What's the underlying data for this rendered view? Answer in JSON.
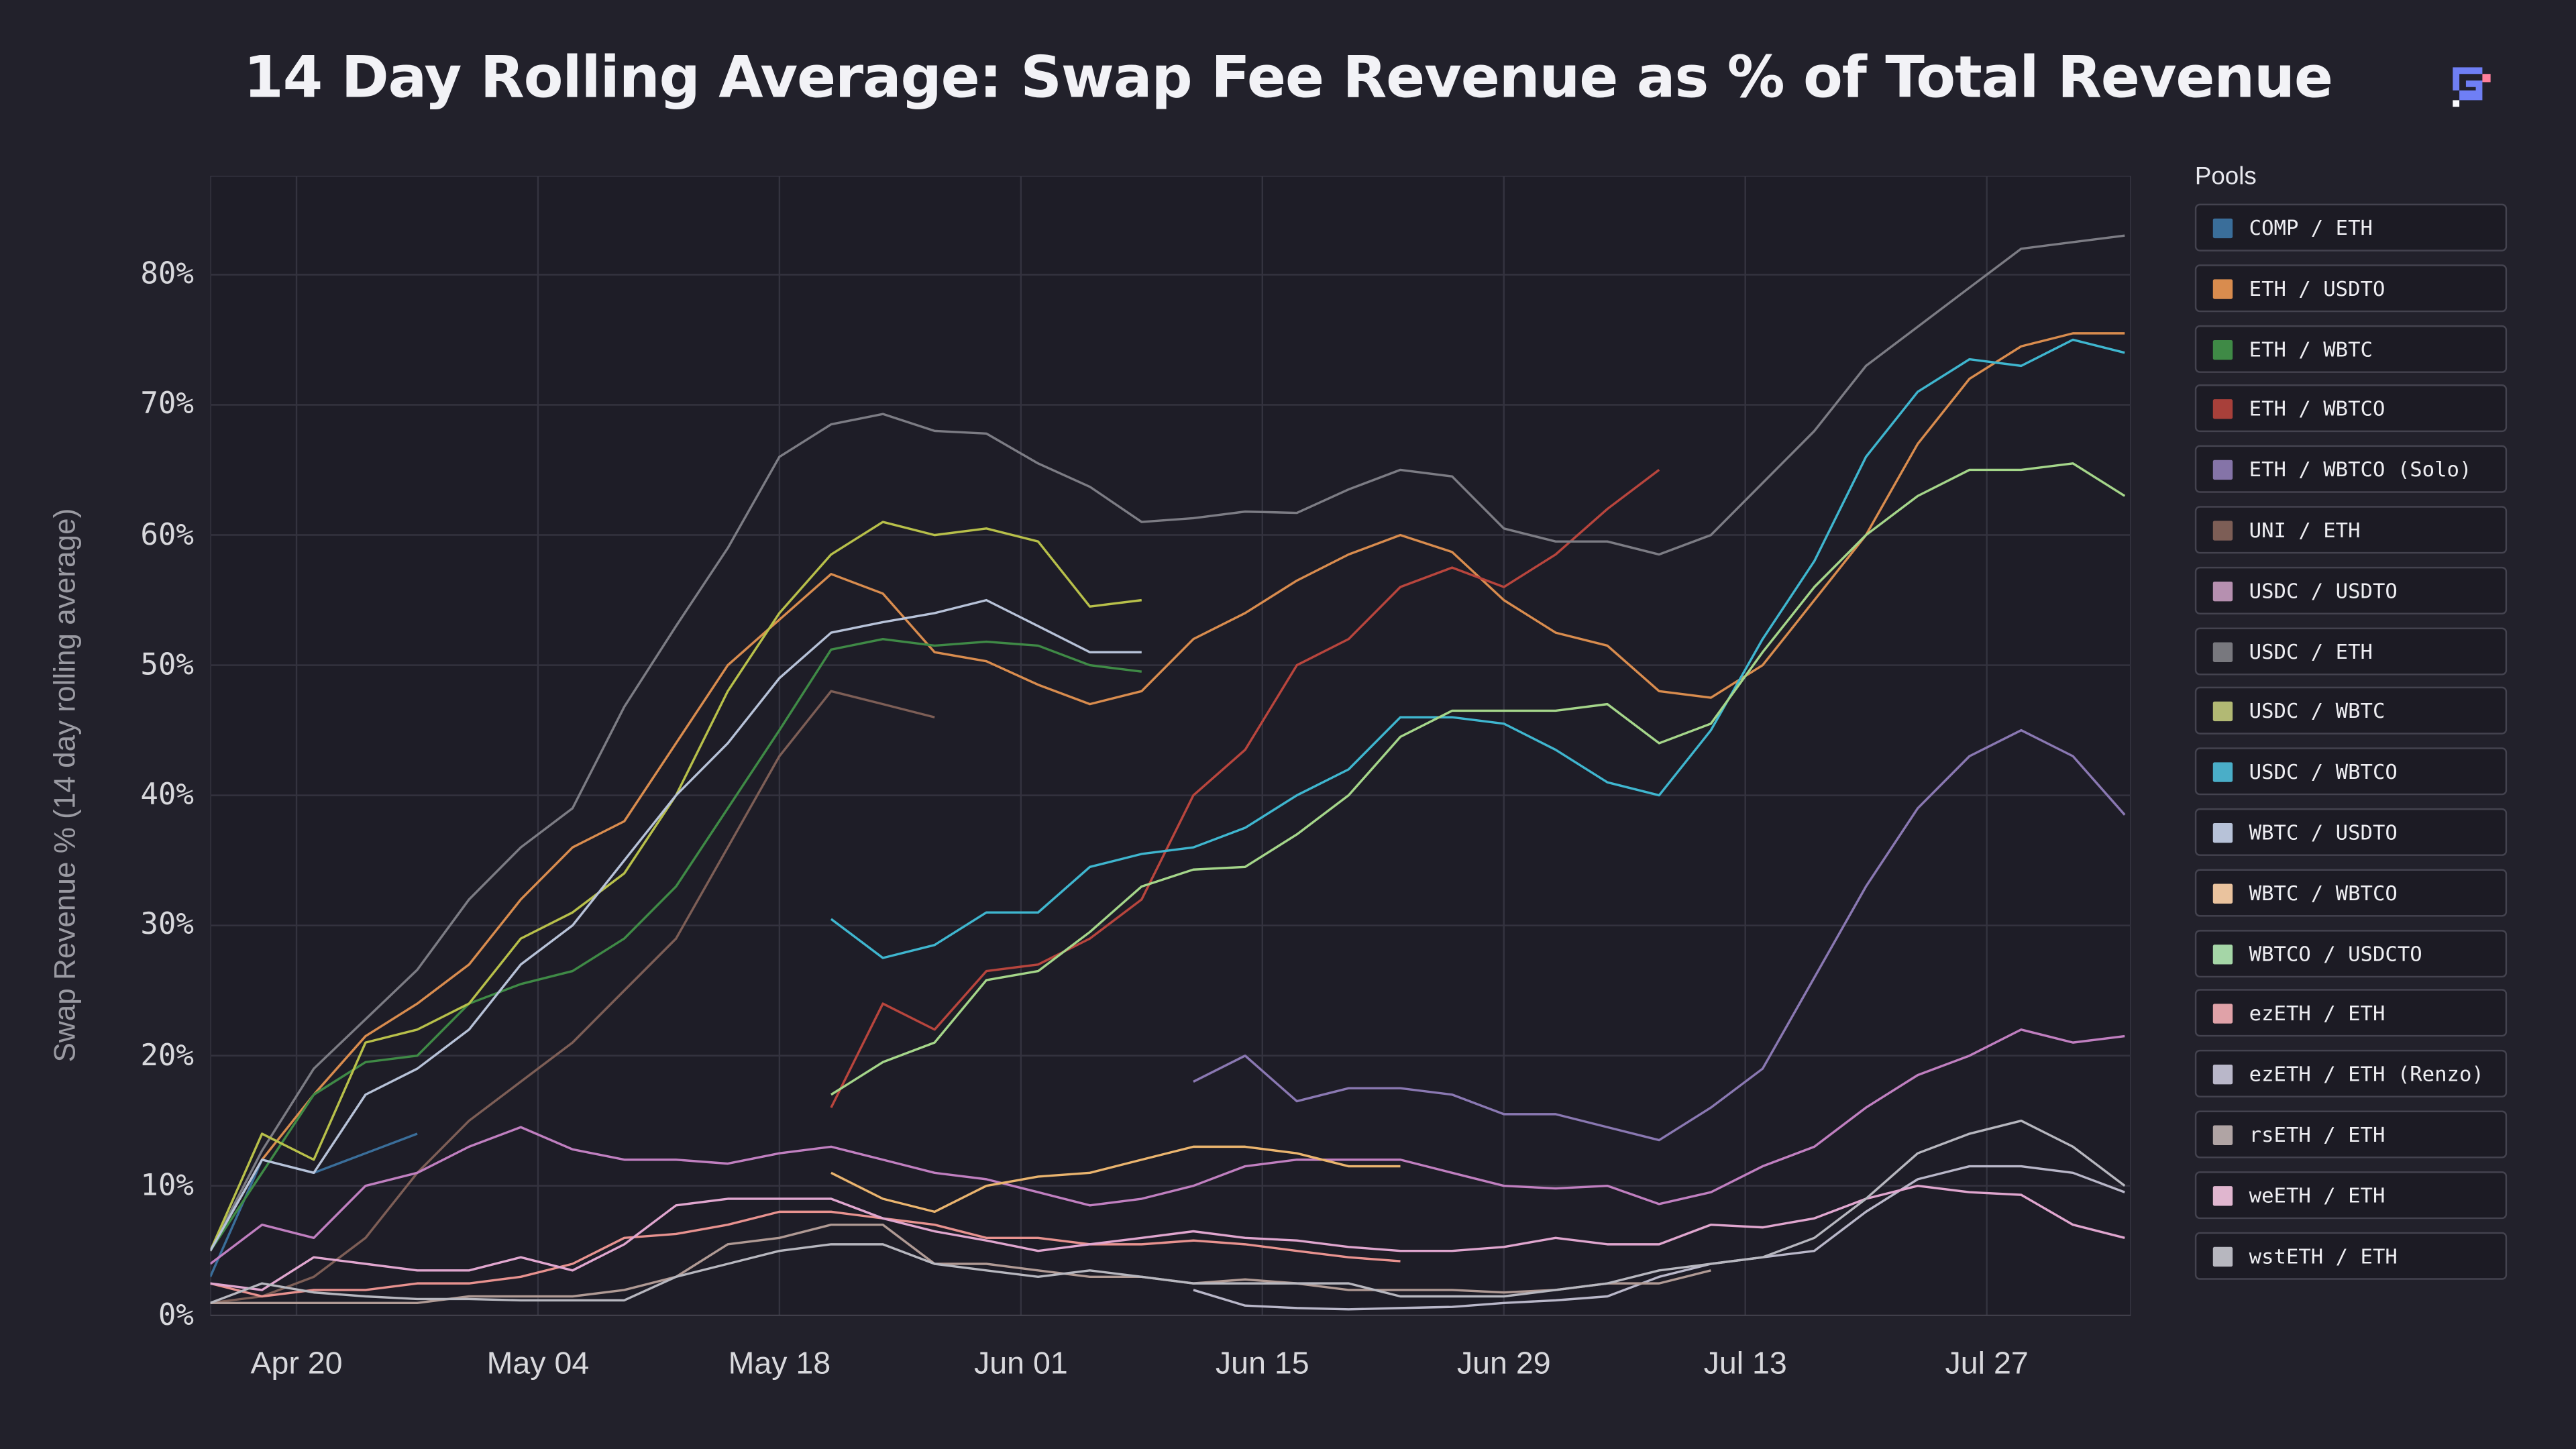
{
  "chart_data": {
    "type": "line",
    "title": "14 Day Rolling Average: Swap Fee Revenue as % of Total Revenue",
    "xlabel": "",
    "ylabel": "Swap Revenue % (14 day rolling average)",
    "ylim": [
      0,
      87.6
    ],
    "xlim": [
      "Apr 15",
      "Aug 04"
    ],
    "grid": true,
    "legend_title": "Pools",
    "legend_position": "right",
    "x_ticks": [
      "Apr 20",
      "May 04",
      "May 18",
      "Jun 01",
      "Jun 15",
      "Jun 29",
      "Jul 13",
      "Jul 27"
    ],
    "y_ticks": [
      "0%",
      "10%",
      "20%",
      "30%",
      "40%",
      "50%",
      "60%",
      "70%",
      "80%"
    ],
    "x": [
      "Apr 15",
      "Apr 18",
      "Apr 21",
      "Apr 24",
      "Apr 27",
      "Apr 30",
      "May 03",
      "May 06",
      "May 09",
      "May 12",
      "May 15",
      "May 18",
      "May 21",
      "May 24",
      "May 27",
      "May 30",
      "Jun 02",
      "Jun 05",
      "Jun 08",
      "Jun 11",
      "Jun 14",
      "Jun 17",
      "Jun 20",
      "Jun 23",
      "Jun 26",
      "Jun 29",
      "Jul 02",
      "Jul 05",
      "Jul 08",
      "Jul 11",
      "Jul 14",
      "Jul 17",
      "Jul 20",
      "Jul 23",
      "Jul 26",
      "Jul 29",
      "Aug 01",
      "Aug 04"
    ],
    "series": [
      {
        "name": "COMP / ETH",
        "color": "#3a6e9a",
        "values": [
          3,
          12,
          11,
          12.5,
          14,
          null,
          null,
          null,
          null,
          null,
          null,
          null,
          null,
          null,
          null,
          null,
          null,
          null,
          null,
          null,
          null,
          null,
          null,
          null,
          null,
          null,
          null,
          null,
          null,
          null,
          null,
          null,
          null,
          null,
          null,
          null,
          null,
          null
        ]
      },
      {
        "name": "ETH / USDTO",
        "color": "#d98c4e",
        "values": [
          5,
          12,
          17,
          21.5,
          24,
          27,
          32,
          36,
          38,
          44,
          50,
          53.5,
          57,
          55.5,
          51,
          50.3,
          48.5,
          47,
          48,
          52,
          54,
          56.5,
          58.5,
          60,
          58.7,
          55,
          52.5,
          51.5,
          48,
          47.5,
          50,
          55,
          60,
          67,
          72,
          74.5,
          75.5,
          75.5
        ]
      },
      {
        "name": "ETH / WBTC",
        "color": "#3f8a46",
        "values": [
          5,
          11,
          17,
          19.5,
          20,
          24,
          25.5,
          26.5,
          29,
          33,
          39,
          45,
          51.2,
          52,
          51.5,
          51.8,
          51.5,
          50,
          49.5,
          null,
          null,
          null,
          null,
          null,
          null,
          null,
          null,
          null,
          null,
          null,
          null,
          null,
          null,
          null,
          null,
          null,
          null,
          null
        ]
      },
      {
        "name": "ETH / WBTCO",
        "color": "#b8453d",
        "values": [
          null,
          null,
          null,
          null,
          null,
          null,
          null,
          null,
          null,
          null,
          null,
          null,
          16,
          24,
          22,
          26.5,
          27,
          29,
          32,
          40,
          43.5,
          50,
          52,
          56,
          57.5,
          56,
          58.5,
          62,
          65,
          null,
          null,
          null,
          null,
          null,
          null,
          null,
          null,
          null
        ]
      },
      {
        "name": "ETH / WBTCO (Solo)",
        "color": "#8a78b2",
        "values": [
          null,
          null,
          null,
          null,
          null,
          null,
          null,
          null,
          null,
          null,
          null,
          null,
          null,
          null,
          null,
          null,
          null,
          null,
          null,
          18,
          20,
          16.5,
          17.5,
          17.5,
          17,
          15.5,
          15.5,
          14.5,
          13.5,
          16,
          19,
          26,
          33,
          39,
          43,
          45,
          43,
          38.5
        ]
      },
      {
        "name": "UNI / ETH",
        "color": "#7d5e56",
        "values": [
          1,
          1.5,
          3,
          6,
          11,
          15,
          18,
          21,
          25,
          29,
          36,
          43,
          48,
          47,
          46,
          null,
          null,
          null,
          null,
          null,
          null,
          null,
          null,
          null,
          null,
          null,
          null,
          null,
          null,
          null,
          null,
          null,
          null,
          null,
          null,
          null,
          null,
          null
        ]
      },
      {
        "name": "USDC / USDTO",
        "color": "#c07fc0",
        "values": [
          4,
          7,
          6,
          10,
          11,
          13,
          14.5,
          12.8,
          12,
          12,
          11.7,
          12.5,
          13,
          12,
          11,
          10.5,
          9.5,
          8.5,
          9,
          10,
          11.5,
          12,
          12,
          12,
          11,
          10,
          9.8,
          10,
          8.6,
          9.5,
          11.5,
          13,
          16,
          18.5,
          20,
          22,
          21,
          21.5
        ]
      },
      {
        "name": "USDC / ETH",
        "color": "#7c7c84",
        "values": [
          5,
          12.7,
          19,
          22.8,
          26.6,
          32,
          36,
          39,
          46.8,
          53,
          59,
          66,
          68.5,
          69.3,
          68,
          67.8,
          65.5,
          63.7,
          61,
          61.3,
          61.8,
          61.7,
          63.5,
          65,
          64.5,
          60.5,
          59.5,
          59.5,
          58.5,
          60,
          64,
          68,
          73,
          76,
          79,
          82,
          82.5,
          83
        ]
      },
      {
        "name": "USDC / WBTC",
        "color": "#b8c04a",
        "values": [
          5,
          14,
          12,
          21,
          22,
          24,
          29,
          31,
          34,
          40,
          48,
          54,
          58.5,
          61,
          60,
          60.5,
          59.5,
          54.5,
          55,
          null,
          null,
          null,
          null,
          null,
          null,
          null,
          null,
          null,
          null,
          null,
          null,
          null,
          null,
          null,
          null,
          null,
          null,
          null
        ]
      },
      {
        "name": "USDC / WBTCO",
        "color": "#3fb6cf",
        "values": [
          null,
          null,
          null,
          null,
          null,
          null,
          null,
          null,
          null,
          null,
          null,
          null,
          30.5,
          27.5,
          28.5,
          31,
          31,
          34.5,
          35.5,
          36,
          37.5,
          40,
          42,
          46,
          46,
          45.5,
          43.5,
          41,
          40,
          45,
          52,
          58,
          66,
          71,
          73.5,
          73,
          75,
          74
        ]
      },
      {
        "name": "WBTC / USDTO",
        "color": "#b7c2d8",
        "values": [
          5,
          12,
          11,
          17,
          19,
          22,
          27,
          30,
          35,
          40,
          44,
          49,
          52.5,
          53.3,
          54,
          55,
          53,
          51,
          51,
          null,
          null,
          null,
          null,
          null,
          null,
          null,
          null,
          null,
          null,
          null,
          null,
          null,
          null,
          null,
          null,
          null,
          null,
          null
        ]
      },
      {
        "name": "WBTC / WBTCO",
        "color": "#eab46e",
        "values": [
          null,
          null,
          null,
          null,
          null,
          null,
          null,
          null,
          null,
          null,
          null,
          null,
          11,
          9,
          8,
          10,
          10.7,
          11,
          12,
          13,
          13,
          12.5,
          11.5,
          11.5,
          null,
          null,
          null,
          null,
          null,
          null,
          null,
          null,
          null,
          null,
          null,
          null,
          null,
          null
        ]
      },
      {
        "name": "WBTCO / USDCTO",
        "color": "#a5d68a",
        "values": [
          null,
          null,
          null,
          null,
          null,
          null,
          null,
          null,
          null,
          null,
          null,
          null,
          17,
          19.5,
          21,
          25.8,
          26.5,
          29.5,
          33,
          34.3,
          34.5,
          37,
          40,
          44.5,
          46.5,
          46.5,
          46.5,
          47,
          44,
          45.5,
          51,
          56,
          60,
          63,
          65,
          65,
          65.5,
          63
        ]
      },
      {
        "name": "ezETH / ETH",
        "color": "#e8928f",
        "values": [
          2.5,
          1.5,
          2,
          2,
          2.5,
          2.5,
          3,
          4,
          6,
          6.3,
          7,
          8,
          8,
          7.5,
          7,
          6,
          6,
          5.5,
          5.5,
          5.8,
          5.5,
          5,
          4.5,
          4.2,
          null,
          null,
          null,
          null,
          null,
          null,
          null,
          null,
          null,
          null,
          null,
          null,
          null,
          null
        ]
      },
      {
        "name": "ezETH / ETH (Renzo)",
        "color": "#b9b7c9",
        "values": [
          null,
          null,
          null,
          null,
          null,
          null,
          null,
          null,
          null,
          null,
          null,
          null,
          null,
          null,
          null,
          null,
          null,
          null,
          null,
          2,
          0.8,
          0.6,
          0.5,
          0.6,
          0.7,
          1,
          1.2,
          1.5,
          3,
          4,
          4.5,
          5,
          8,
          10.5,
          11.5,
          11.5,
          11,
          9.5
        ]
      },
      {
        "name": "rsETH / ETH",
        "color": "#b09a94",
        "values": [
          1,
          1,
          1,
          1,
          1,
          1.5,
          1.5,
          1.5,
          2,
          3,
          5.5,
          6,
          7,
          7,
          4,
          4,
          3.5,
          3,
          3,
          2.5,
          2.8,
          2.5,
          2,
          2,
          2,
          1.8,
          2,
          2.5,
          2.5,
          3.5,
          null,
          null,
          null,
          null,
          null,
          null,
          null,
          null
        ]
      },
      {
        "name": "weETH / ETH",
        "color": "#e0a6cf",
        "values": [
          2.5,
          2,
          4.5,
          4,
          3.5,
          3.5,
          4.5,
          3.5,
          5.5,
          8.5,
          9,
          9,
          9,
          7.5,
          6.5,
          5.8,
          5,
          5.5,
          6,
          6.5,
          6,
          5.8,
          5.3,
          5,
          5,
          5.3,
          6,
          5.5,
          5.5,
          7,
          6.8,
          7.5,
          9,
          10,
          9.5,
          9.3,
          7,
          6
        ]
      },
      {
        "name": "wstETH / ETH",
        "color": "#b7b7bf",
        "values": [
          1,
          2.5,
          1.8,
          1.5,
          1.3,
          1.3,
          1.2,
          1.2,
          1.2,
          3,
          4,
          5,
          5.5,
          5.5,
          4,
          3.5,
          3,
          3.5,
          3,
          2.5,
          2.5,
          2.5,
          2.5,
          1.5,
          1.5,
          1.5,
          2,
          2.5,
          3.5,
          4,
          4.5,
          6,
          9,
          12.5,
          14,
          15,
          13,
          10
        ]
      }
    ]
  },
  "legend": {
    "title": "Pools",
    "items": [
      {
        "label": "COMP / ETH",
        "color": "#3a6e9a"
      },
      {
        "label": "ETH / USDTO",
        "color": "#d98c4e"
      },
      {
        "label": "ETH / WBTC",
        "color": "#3f8a46"
      },
      {
        "label": "ETH / WBTCO",
        "color": "#a8403a"
      },
      {
        "label": "ETH / WBTCO (Solo)",
        "color": "#8574a8"
      },
      {
        "label": "UNI / ETH",
        "color": "#7d5e56"
      },
      {
        "label": "USDC / USDTO",
        "color": "#b690b0"
      },
      {
        "label": "USDC / ETH",
        "color": "#78787e"
      },
      {
        "label": "USDC / WBTC",
        "color": "#b2b974"
      },
      {
        "label": "USDC / WBTCO",
        "color": "#4aaec8"
      },
      {
        "label": "WBTC / USDTO",
        "color": "#b7c2d8"
      },
      {
        "label": "WBTC / WBTCO",
        "color": "#eac39e"
      },
      {
        "label": "WBTCO / USDCTO",
        "color": "#a5d6a7"
      },
      {
        "label": "ezETH / ETH",
        "color": "#e0a2a8"
      },
      {
        "label": "ezETH / ETH (Renzo)",
        "color": "#b9b7c9"
      },
      {
        "label": "rsETH / ETH",
        "color": "#b0a4a4"
      },
      {
        "label": "weETH / ETH",
        "color": "#e0b6cf"
      },
      {
        "label": "wstETH / ETH",
        "color": "#b7b7bf"
      }
    ]
  },
  "colors": {
    "background": "#22212b",
    "plot_background": "#1e1d27",
    "grid": "#34333f",
    "logo_primary": "#6f7ff5",
    "logo_accent": "#ff7f9a"
  }
}
